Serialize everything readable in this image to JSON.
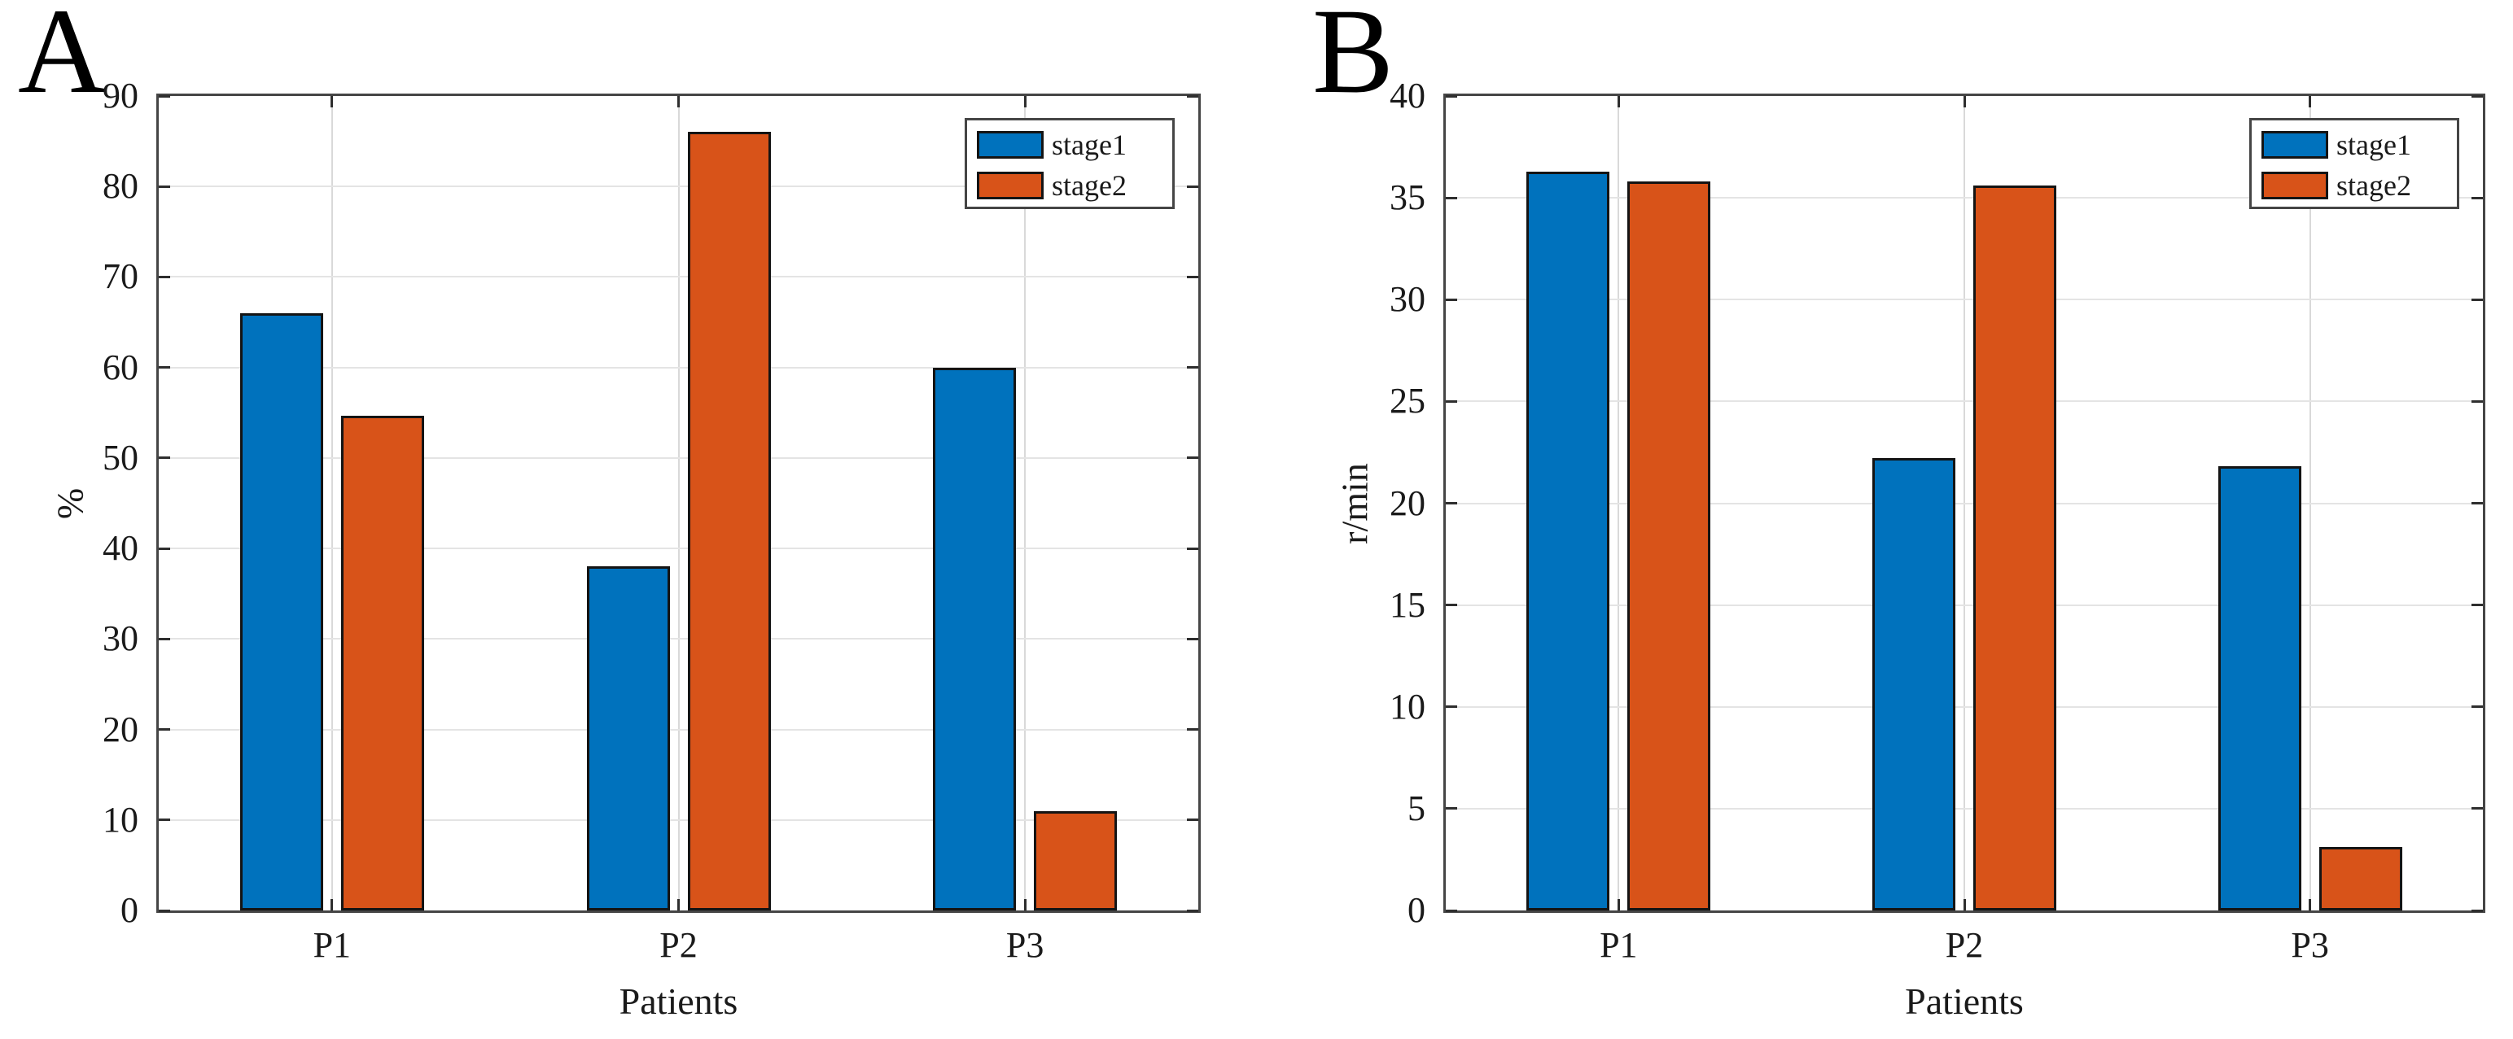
{
  "figure": {
    "background": "#ffffff",
    "axis_box_color": "#454545",
    "gridline_color": "#e4e4e4",
    "bar_edge_color": "#141414"
  },
  "chart_data": [
    {
      "type": "bar",
      "panel_label": "A",
      "title": "",
      "xlabel": "Patients",
      "ylabel": "%",
      "ylim": [
        0,
        90
      ],
      "ytick_step": 10,
      "yticks": [
        0,
        10,
        20,
        30,
        40,
        50,
        60,
        70,
        80,
        90
      ],
      "grid": true,
      "categories": [
        "P1",
        "P2",
        "P3"
      ],
      "series": [
        {
          "name": "stage1",
          "color": "#0072bd",
          "values": [
            66,
            38,
            60
          ]
        },
        {
          "name": "stage2",
          "color": "#d85319",
          "values": [
            54.7,
            86,
            11
          ]
        }
      ],
      "legend": {
        "position": "top-right",
        "entries": [
          "stage1",
          "stage2"
        ]
      }
    },
    {
      "type": "bar",
      "panel_label": "B",
      "title": "",
      "xlabel": "Patients",
      "ylabel": "r/min",
      "ylim": [
        0,
        40
      ],
      "ytick_step": 5,
      "yticks": [
        0,
        5,
        10,
        15,
        20,
        25,
        30,
        35,
        40
      ],
      "grid": true,
      "categories": [
        "P1",
        "P2",
        "P3"
      ],
      "series": [
        {
          "name": "stage1",
          "color": "#0072bd",
          "values": [
            36.3,
            22.2,
            21.8
          ]
        },
        {
          "name": "stage2",
          "color": "#d85319",
          "values": [
            35.8,
            35.6,
            3.1
          ]
        }
      ],
      "legend": {
        "position": "top-right",
        "entries": [
          "stage1",
          "stage2"
        ]
      }
    }
  ]
}
